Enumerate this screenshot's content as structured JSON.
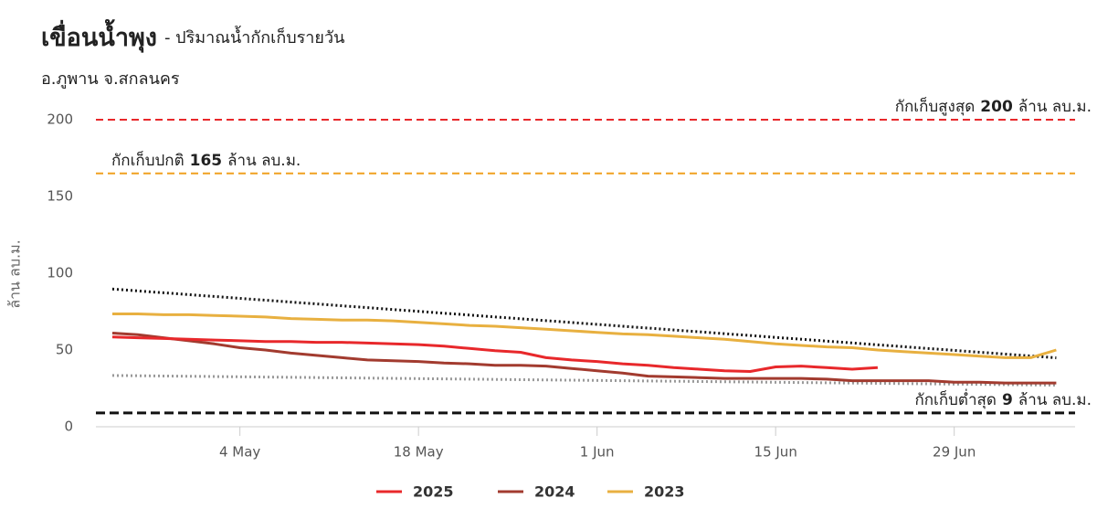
{
  "chart_data": {
    "type": "line",
    "title": "เขื่อนน้ำพุง",
    "title_detail": "- ปริมาณน้ำกักเก็บรายวัน",
    "subtitle": "อ.ภูพาน จ.สกลนคร",
    "y_label": "ล้าน ลบ.ม.",
    "categories": [
      null,
      null,
      null,
      null,
      null,
      "4 May",
      null,
      null,
      null,
      null,
      null,
      null,
      "18 May",
      null,
      null,
      null,
      null,
      null,
      null,
      "1 Jun",
      null,
      null,
      null,
      null,
      null,
      null,
      "15 Jun",
      null,
      null,
      null,
      null,
      null,
      null,
      "29 Jun",
      null,
      null,
      null,
      null
    ],
    "ylim": [
      0,
      200
    ],
    "yticks": [
      0,
      50,
      100,
      150,
      200
    ],
    "grid": false,
    "legend": "bottom",
    "series": [
      {
        "name": "2025",
        "color": "#e8282b",
        "values": [
          58.5,
          58,
          57.5,
          57,
          56.5,
          56,
          55.5,
          55.5,
          55,
          55,
          54.5,
          54,
          53.5,
          52.5,
          51,
          49.5,
          48.5,
          45,
          43.5,
          42.5,
          41,
          40,
          38.5,
          37.5,
          36.5,
          36,
          39,
          39.5,
          38.5,
          37.5,
          38.5,
          null,
          null,
          null,
          null,
          null,
          null,
          null
        ]
      },
      {
        "name": "2024",
        "color": "#a23b2f",
        "values": [
          61,
          60,
          58,
          56,
          54,
          51.5,
          50,
          48,
          46.5,
          45,
          43.5,
          43,
          42.5,
          41.5,
          41,
          40,
          40,
          39.5,
          38,
          36.5,
          35,
          33,
          32.5,
          32,
          31.5,
          31.5,
          31.5,
          31.5,
          31,
          30,
          30,
          30,
          30,
          29,
          29,
          28.5,
          28.5,
          28.5
        ]
      },
      {
        "name": "2023",
        "color": "#e8b040",
        "values": [
          73.5,
          73.5,
          73,
          73,
          72.5,
          72,
          71.5,
          70.5,
          70,
          69.5,
          69.5,
          69,
          68,
          67,
          66,
          65.5,
          64.5,
          63.5,
          62.5,
          61.5,
          60.5,
          60,
          59,
          58,
          57,
          55.5,
          54,
          53,
          52,
          51.5,
          50,
          49,
          48,
          47,
          46,
          45,
          45,
          50
        ]
      }
    ],
    "trend_lines": [
      {
        "color": "#111111",
        "values": [
          89.7,
          44.9
        ]
      },
      {
        "color": "#999999",
        "values": [
          33.4,
          27.1
        ]
      }
    ],
    "reference_lines": [
      {
        "value": 200,
        "color": "#e8282b",
        "label_prefix": "กักเก็บสูงสุด",
        "label_suffix": "ล้าน ลบ.ม.",
        "align": "right"
      },
      {
        "value": 165,
        "color": "#f0a020",
        "label_prefix": "กักเก็บปกติ",
        "label_suffix": "ล้าน ลบ.ม.",
        "align": "left"
      },
      {
        "value": 9,
        "color": "#111111",
        "label_prefix": "กักเก็บต่ำสุด",
        "label_suffix": "ล้าน ลบ.ม.",
        "align": "right"
      }
    ]
  }
}
